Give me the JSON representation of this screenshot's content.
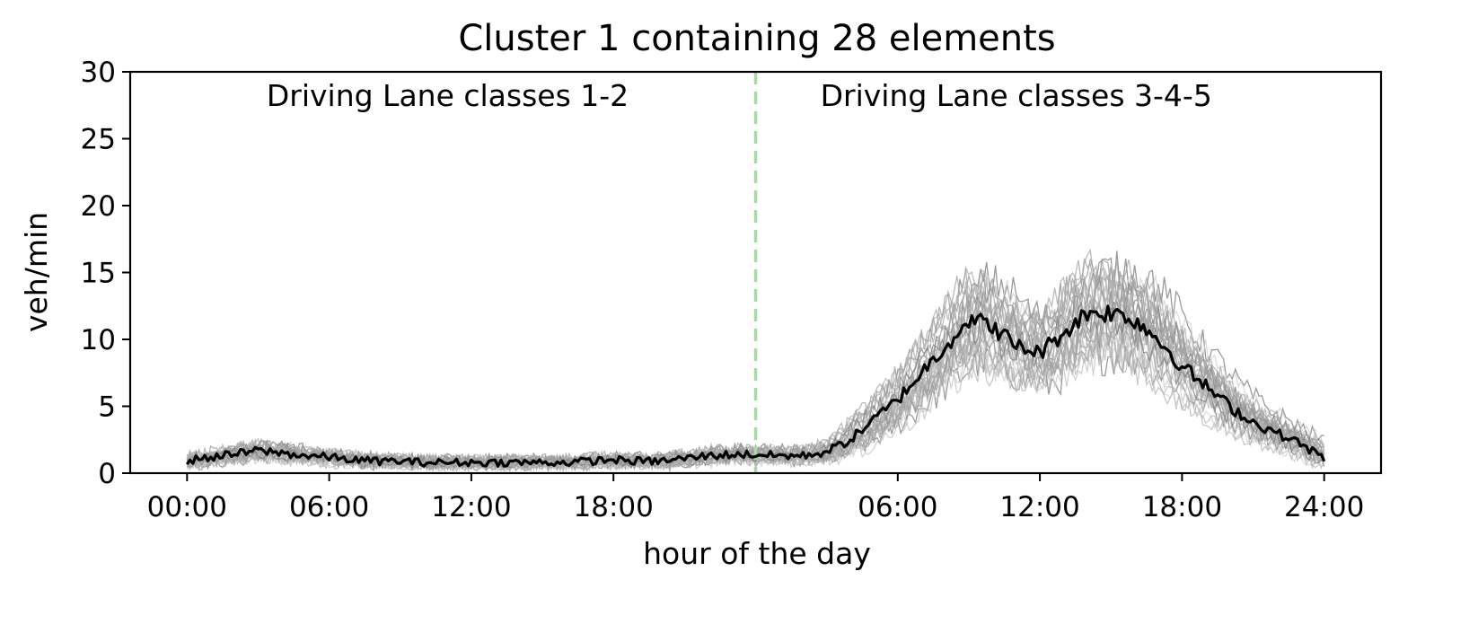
{
  "chart_data": {
    "type": "line",
    "title": "Cluster 1 containing 28 elements",
    "xlabel": "hour of the day",
    "ylabel": "veh/min",
    "ylim": [
      0,
      30
    ],
    "yticks": [
      0,
      5,
      10,
      15,
      20,
      25,
      30
    ],
    "x_unit": "hours across two concatenated days (0-48)",
    "xlim": [
      -2.4,
      50.4
    ],
    "xticks": [
      {
        "x": 0,
        "label": "00:00"
      },
      {
        "x": 6,
        "label": "06:00"
      },
      {
        "x": 12,
        "label": "12:00"
      },
      {
        "x": 18,
        "label": "18:00"
      },
      {
        "x": 30,
        "label": "06:00"
      },
      {
        "x": 36,
        "label": "12:00"
      },
      {
        "x": 42,
        "label": "18:00"
      },
      {
        "x": 48,
        "label": "24:00"
      }
    ],
    "divider": {
      "x": 24,
      "style": "dashed",
      "color": "#a8d8a8"
    },
    "annotations": [
      {
        "text": "Driving Lane classes 1-2",
        "x": 11,
        "y": 28
      },
      {
        "text": "Driving Lane classes 3-4-5",
        "x": 35,
        "y": 28
      }
    ],
    "grid": false,
    "legend": "none",
    "colors": {
      "mean": "#000000",
      "members": "#999999",
      "divider": "#a8d8a8"
    },
    "member_count": 28,
    "series": [
      {
        "role": "cluster mean",
        "x_start": 0,
        "x_step": 1,
        "values": [
          0.9,
          1.2,
          1.4,
          1.7,
          1.5,
          1.3,
          1.2,
          1.0,
          0.9,
          0.9,
          0.8,
          0.8,
          0.8,
          0.8,
          0.8,
          0.8,
          0.8,
          0.9,
          1.0,
          0.9,
          0.9,
          1.1,
          1.3,
          1.4,
          1.4,
          1.3,
          1.3,
          1.6,
          2.5,
          4.0,
          5.5,
          7.5,
          9.5,
          11.5,
          11.0,
          9.5,
          9.0,
          10.5,
          12.0,
          12.0,
          11.5,
          10.0,
          8.0,
          6.5,
          5.0,
          3.8,
          3.0,
          2.2,
          1.1
        ]
      }
    ]
  }
}
